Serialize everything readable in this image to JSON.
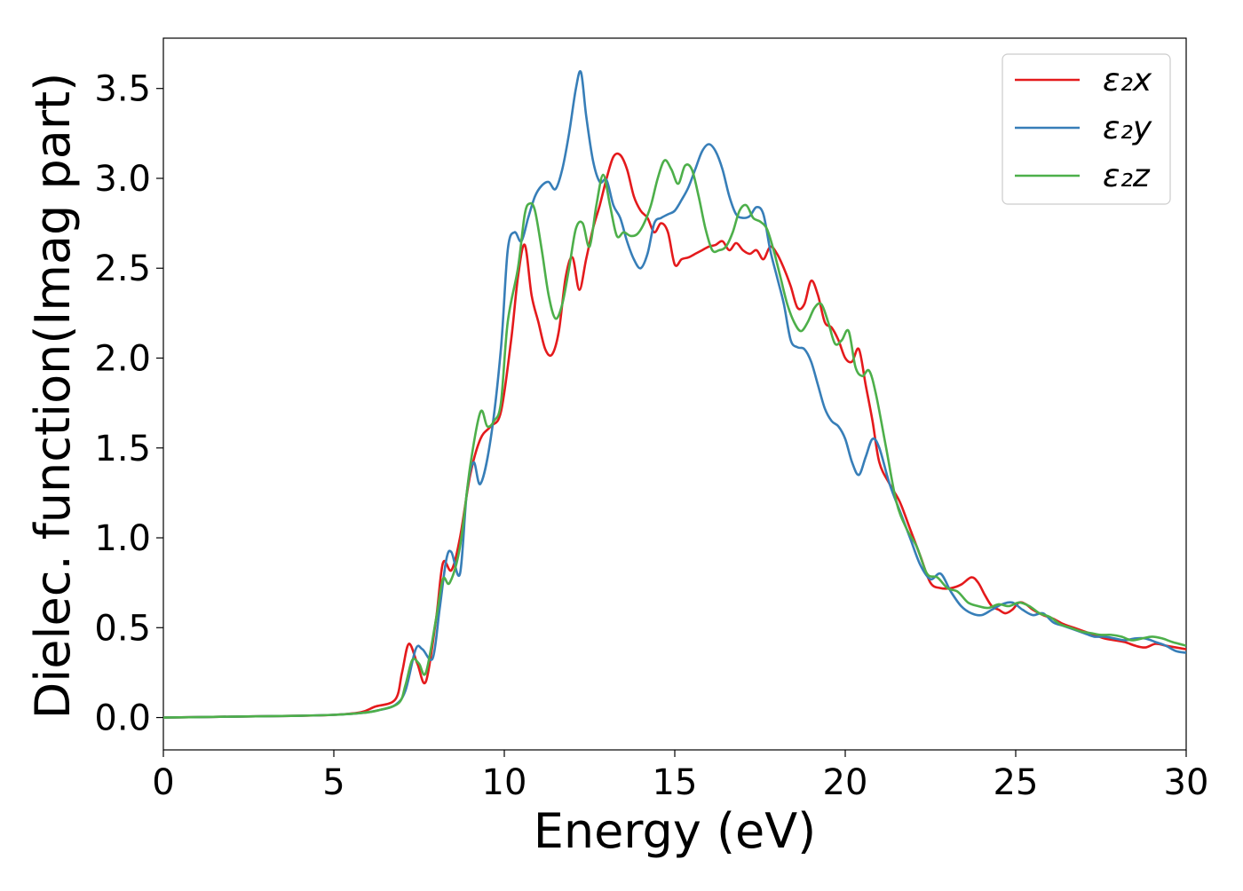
{
  "chart_data": {
    "type": "line",
    "xlabel": "Energy (eV)",
    "ylabel": "Dielec. function(Imag part)",
    "xlim": [
      0,
      30
    ],
    "ylim": [
      -0.18,
      3.78
    ],
    "xticks": [
      0,
      5,
      10,
      15,
      20,
      25,
      30
    ],
    "xtick_labels": [
      "0",
      "5",
      "10",
      "15",
      "20",
      "25",
      "30"
    ],
    "yticks": [
      0.0,
      0.5,
      1.0,
      1.5,
      2.0,
      2.5,
      3.0,
      3.5
    ],
    "ytick_labels": [
      "0.0",
      "0.5",
      "1.0",
      "1.5",
      "2.0",
      "2.5",
      "3.0",
      "3.5"
    ],
    "grid": false,
    "legend_position": "upper-right",
    "series": [
      {
        "name": "ε₂x",
        "color": "#e41a1c",
        "x": [
          0,
          2,
          4,
          5,
          5.8,
          6.2,
          6.8,
          7.0,
          7.2,
          7.45,
          7.7,
          8.0,
          8.2,
          8.45,
          8.7,
          9.0,
          9.3,
          9.6,
          9.9,
          10.2,
          10.4,
          10.6,
          10.8,
          11.0,
          11.2,
          11.4,
          11.6,
          11.8,
          12.0,
          12.2,
          12.4,
          12.6,
          12.8,
          13.0,
          13.2,
          13.4,
          13.6,
          13.8,
          14.0,
          14.2,
          14.4,
          14.6,
          14.8,
          15.0,
          15.2,
          15.4,
          15.6,
          15.8,
          16.0,
          16.2,
          16.4,
          16.6,
          16.8,
          17.0,
          17.2,
          17.4,
          17.6,
          17.8,
          18.0,
          18.2,
          18.4,
          18.6,
          18.8,
          19.0,
          19.2,
          19.4,
          19.6,
          19.8,
          20.0,
          20.2,
          20.4,
          20.6,
          20.8,
          21.0,
          21.3,
          21.6,
          21.9,
          22.2,
          22.5,
          22.8,
          23.1,
          23.4,
          23.7,
          23.9,
          24.1,
          24.3,
          24.5,
          24.7,
          24.9,
          25.1,
          25.3,
          25.5,
          25.8,
          26.1,
          26.4,
          26.7,
          27.0,
          27.3,
          27.6,
          27.9,
          28.2,
          28.5,
          28.8,
          29.1,
          29.4,
          29.7,
          30.0
        ],
        "y": [
          0.0,
          0.005,
          0.01,
          0.015,
          0.03,
          0.06,
          0.1,
          0.25,
          0.41,
          0.3,
          0.2,
          0.55,
          0.86,
          0.82,
          1.0,
          1.35,
          1.55,
          1.62,
          1.7,
          2.1,
          2.45,
          2.63,
          2.35,
          2.2,
          2.05,
          2.02,
          2.15,
          2.45,
          2.56,
          2.38,
          2.55,
          2.72,
          2.85,
          3.0,
          3.12,
          3.13,
          3.05,
          2.9,
          2.82,
          2.78,
          2.7,
          2.75,
          2.7,
          2.52,
          2.55,
          2.56,
          2.58,
          2.6,
          2.62,
          2.63,
          2.65,
          2.6,
          2.64,
          2.6,
          2.58,
          2.6,
          2.55,
          2.62,
          2.58,
          2.5,
          2.4,
          2.28,
          2.3,
          2.43,
          2.35,
          2.2,
          2.17,
          2.1,
          2.0,
          1.98,
          2.05,
          1.85,
          1.65,
          1.42,
          1.3,
          1.2,
          1.05,
          0.9,
          0.75,
          0.72,
          0.72,
          0.74,
          0.78,
          0.75,
          0.68,
          0.62,
          0.6,
          0.58,
          0.6,
          0.64,
          0.63,
          0.6,
          0.57,
          0.55,
          0.52,
          0.5,
          0.48,
          0.46,
          0.44,
          0.43,
          0.42,
          0.4,
          0.39,
          0.41,
          0.4,
          0.39,
          0.38
        ]
      },
      {
        "name": "ε₂y",
        "color": "#377eb8",
        "x": [
          0,
          2,
          4,
          5,
          5.8,
          6.3,
          6.8,
          7.1,
          7.4,
          7.6,
          7.9,
          8.1,
          8.3,
          8.45,
          8.7,
          8.9,
          9.1,
          9.3,
          9.6,
          9.9,
          10.1,
          10.3,
          10.5,
          10.7,
          10.9,
          11.1,
          11.3,
          11.5,
          11.7,
          11.9,
          12.1,
          12.25,
          12.4,
          12.6,
          12.8,
          13.0,
          13.2,
          13.4,
          13.6,
          13.8,
          14.0,
          14.2,
          14.4,
          14.6,
          14.8,
          15.0,
          15.2,
          15.4,
          15.6,
          15.8,
          16.0,
          16.2,
          16.4,
          16.6,
          16.8,
          17.0,
          17.2,
          17.4,
          17.6,
          17.8,
          18.0,
          18.2,
          18.4,
          18.6,
          18.8,
          19.0,
          19.2,
          19.4,
          19.6,
          19.8,
          20.0,
          20.2,
          20.4,
          20.6,
          20.8,
          21.0,
          21.3,
          21.6,
          21.9,
          22.2,
          22.5,
          22.8,
          23.1,
          23.4,
          23.7,
          24.0,
          24.3,
          24.6,
          24.9,
          25.2,
          25.5,
          25.8,
          26.1,
          26.4,
          26.7,
          27.0,
          27.3,
          27.6,
          27.9,
          28.2,
          28.5,
          28.8,
          29.1,
          29.4,
          29.7,
          30.0
        ],
        "y": [
          0.0,
          0.005,
          0.01,
          0.015,
          0.025,
          0.04,
          0.07,
          0.15,
          0.38,
          0.38,
          0.33,
          0.6,
          0.88,
          0.92,
          0.8,
          1.25,
          1.42,
          1.3,
          1.55,
          2.05,
          2.6,
          2.7,
          2.65,
          2.78,
          2.9,
          2.96,
          2.98,
          2.94,
          3.05,
          3.25,
          3.5,
          3.59,
          3.35,
          3.1,
          2.98,
          2.99,
          2.85,
          2.78,
          2.65,
          2.55,
          2.5,
          2.58,
          2.75,
          2.78,
          2.8,
          2.82,
          2.88,
          2.95,
          3.05,
          3.15,
          3.19,
          3.15,
          3.05,
          2.9,
          2.8,
          2.78,
          2.79,
          2.84,
          2.8,
          2.6,
          2.45,
          2.3,
          2.1,
          2.06,
          2.05,
          1.98,
          1.85,
          1.72,
          1.65,
          1.62,
          1.55,
          1.42,
          1.35,
          1.45,
          1.55,
          1.5,
          1.3,
          1.15,
          1.0,
          0.85,
          0.77,
          0.8,
          0.7,
          0.62,
          0.58,
          0.57,
          0.6,
          0.63,
          0.64,
          0.6,
          0.57,
          0.58,
          0.53,
          0.51,
          0.49,
          0.47,
          0.45,
          0.45,
          0.44,
          0.43,
          0.44,
          0.44,
          0.42,
          0.4,
          0.37,
          0.36
        ]
      },
      {
        "name": "ε₂z",
        "color": "#4daf4a",
        "x": [
          0,
          2,
          4,
          5,
          5.8,
          6.3,
          6.9,
          7.1,
          7.3,
          7.5,
          7.7,
          8.0,
          8.2,
          8.4,
          8.7,
          9.0,
          9.3,
          9.5,
          9.7,
          9.9,
          10.1,
          10.4,
          10.6,
          10.75,
          10.9,
          11.1,
          11.3,
          11.5,
          11.7,
          11.9,
          12.1,
          12.3,
          12.5,
          12.7,
          12.9,
          13.1,
          13.3,
          13.5,
          13.7,
          13.9,
          14.1,
          14.3,
          14.5,
          14.7,
          14.9,
          15.1,
          15.3,
          15.5,
          15.7,
          15.9,
          16.1,
          16.3,
          16.5,
          16.7,
          16.9,
          17.1,
          17.3,
          17.5,
          17.7,
          17.9,
          18.1,
          18.3,
          18.5,
          18.7,
          18.9,
          19.1,
          19.3,
          19.5,
          19.7,
          19.9,
          20.1,
          20.3,
          20.5,
          20.7,
          20.9,
          21.2,
          21.5,
          21.8,
          22.1,
          22.4,
          22.7,
          23.0,
          23.3,
          23.6,
          23.9,
          24.2,
          24.5,
          24.8,
          25.1,
          25.4,
          25.7,
          26.0,
          26.3,
          26.6,
          26.9,
          27.2,
          27.5,
          27.8,
          28.1,
          28.4,
          28.7,
          29.0,
          29.3,
          29.6,
          30.0
        ],
        "y": [
          0.0,
          0.005,
          0.01,
          0.015,
          0.025,
          0.04,
          0.08,
          0.18,
          0.32,
          0.3,
          0.25,
          0.55,
          0.77,
          0.75,
          0.95,
          1.4,
          1.7,
          1.62,
          1.65,
          1.75,
          2.2,
          2.5,
          2.8,
          2.86,
          2.82,
          2.6,
          2.35,
          2.22,
          2.3,
          2.5,
          2.72,
          2.75,
          2.62,
          2.85,
          3.02,
          2.85,
          2.68,
          2.7,
          2.68,
          2.69,
          2.75,
          2.85,
          3.0,
          3.1,
          3.05,
          2.97,
          3.07,
          3.05,
          2.9,
          2.72,
          2.6,
          2.6,
          2.62,
          2.7,
          2.82,
          2.85,
          2.78,
          2.76,
          2.72,
          2.6,
          2.45,
          2.3,
          2.2,
          2.15,
          2.2,
          2.28,
          2.3,
          2.2,
          2.08,
          2.1,
          2.15,
          1.95,
          1.9,
          1.93,
          1.8,
          1.5,
          1.2,
          1.05,
          0.95,
          0.8,
          0.78,
          0.72,
          0.7,
          0.64,
          0.62,
          0.61,
          0.63,
          0.62,
          0.64,
          0.62,
          0.58,
          0.56,
          0.52,
          0.5,
          0.48,
          0.47,
          0.46,
          0.46,
          0.45,
          0.43,
          0.44,
          0.45,
          0.44,
          0.42,
          0.4
        ]
      }
    ]
  }
}
